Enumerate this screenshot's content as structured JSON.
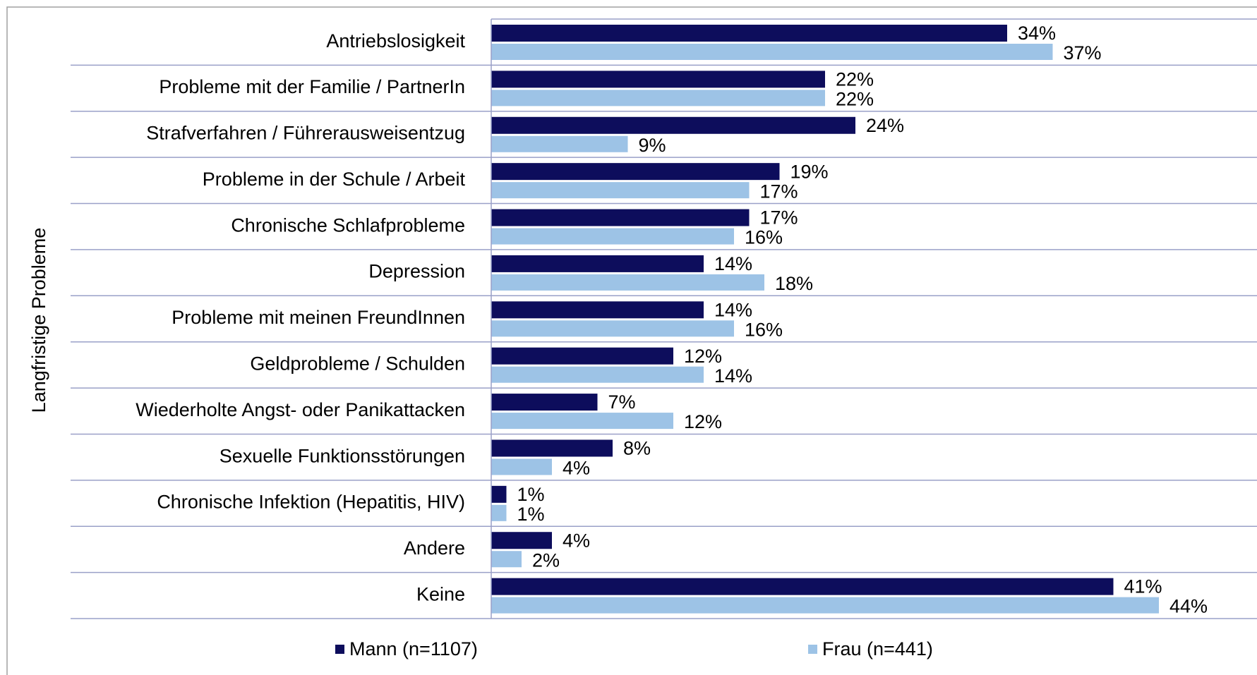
{
  "chart_data": {
    "type": "bar",
    "orientation": "horizontal",
    "y_axis_label": "Langfristige Probleme",
    "categories": [
      "Antriebslosigkeit",
      "Probleme mit der Familie / PartnerIn",
      "Strafverfahren / Führerausweisentzug",
      "Probleme in der Schule / Arbeit",
      "Chronische Schlafprobleme",
      "Depression",
      "Probleme mit meinen FreundInnen",
      "Geldprobleme / Schulden",
      "Wiederholte Angst- oder Panikattacken",
      "Sexuelle Funktionsstörungen",
      "Chronische Infektion (Hepatitis, HIV)",
      "Andere",
      "Keine"
    ],
    "series": [
      {
        "name": "Mann (n=1107)",
        "color": "#0d0d5c",
        "values": [
          34,
          22,
          24,
          19,
          17,
          14,
          14,
          12,
          7,
          8,
          1,
          4,
          41
        ],
        "value_labels": [
          "34%",
          "22%",
          "24%",
          "19%",
          "17%",
          "14%",
          "14%",
          "12%",
          "7%",
          "8%",
          "1%",
          "4%",
          "41%"
        ]
      },
      {
        "name": "Frau (n=441)",
        "color": "#9dc3e6",
        "values": [
          37,
          22,
          9,
          17,
          16,
          18,
          16,
          14,
          12,
          4,
          1,
          2,
          44
        ],
        "value_labels": [
          "37%",
          "22%",
          "9%",
          "17%",
          "16%",
          "18%",
          "16%",
          "14%",
          "12%",
          "4%",
          "1%",
          "2%",
          "44%"
        ]
      }
    ],
    "legend": "bottom"
  }
}
